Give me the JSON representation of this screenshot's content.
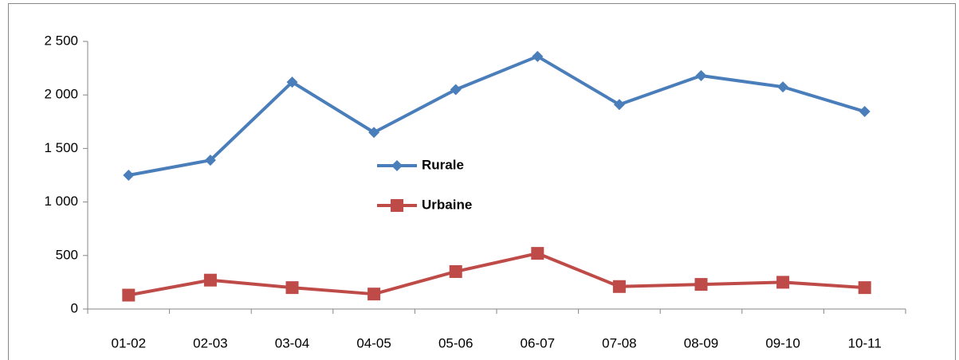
{
  "chart_data": {
    "type": "line",
    "categories": [
      "01-02",
      "02-03",
      "03-04",
      "04-05",
      "05-06",
      "06-07",
      "07-08",
      "08-09",
      "09-10",
      "10-11"
    ],
    "series": [
      {
        "name": "Rurale",
        "color": "#4a7ebb",
        "marker": "diamond",
        "values": [
          1250,
          1390,
          2120,
          1650,
          2050,
          2360,
          1910,
          2180,
          2075,
          1845
        ]
      },
      {
        "name": "Urbaine",
        "color": "#be4b48",
        "marker": "square",
        "values": [
          130,
          270,
          200,
          140,
          350,
          520,
          210,
          230,
          250,
          200
        ]
      }
    ],
    "ylim": [
      0,
      2500
    ],
    "yticks": [
      0,
      500,
      {
        "value": 1000,
        "label": "1 000"
      },
      {
        "value": 1500,
        "label": "1 500"
      },
      {
        "value": 2000,
        "label": "2 000"
      },
      {
        "value": 2500,
        "label": "2 500"
      }
    ],
    "grid": false
  }
}
